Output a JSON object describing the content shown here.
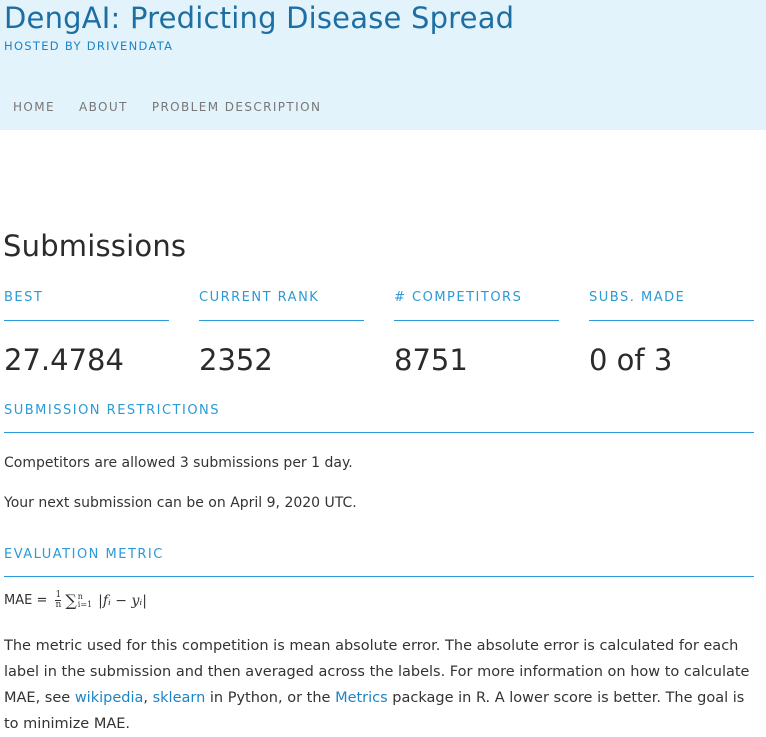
{
  "header": {
    "title": "DengAI: Predicting Disease Spread",
    "hosted_by": "HOSTED BY DRIVENDATA",
    "nav": [
      "HOME",
      "ABOUT",
      "PROBLEM DESCRIPTION"
    ]
  },
  "submissions": {
    "heading": "Submissions",
    "stats": [
      {
        "label": "BEST",
        "value": "27.4784"
      },
      {
        "label": "CURRENT RANK",
        "value": "2352"
      },
      {
        "label": "# COMPETITORS",
        "value": "8751"
      },
      {
        "label": "SUBS. MADE",
        "value": "0 of 3"
      }
    ]
  },
  "restrictions": {
    "title": "SUBMISSION RESTRICTIONS",
    "line1": "Competitors are allowed 3 submissions per 1 day.",
    "line2": "Your next submission can be on April 9, 2020 UTC."
  },
  "evaluation": {
    "title": "EVALUATION METRIC",
    "formula": {
      "lhs": "MAE =",
      "frac_num": "1",
      "frac_den": "n",
      "sum_symbol": "∑",
      "sum_upper": "n",
      "sum_lower": "i=1",
      "term": "|fᵢ − yᵢ|"
    },
    "description_part1": "The metric used for this competition is mean absolute error. The absolute error is calculated for each label in the submission and then averaged across the labels. For more information on how to calculate MAE, see ",
    "link_wikipedia": "wikipedia",
    "sep1": ", ",
    "link_sklearn": "sklearn",
    "description_part2": " in Python, or the ",
    "link_metrics": "Metrics",
    "description_part3": " package in R. A lower score is better. The goal is to minimize MAE."
  }
}
